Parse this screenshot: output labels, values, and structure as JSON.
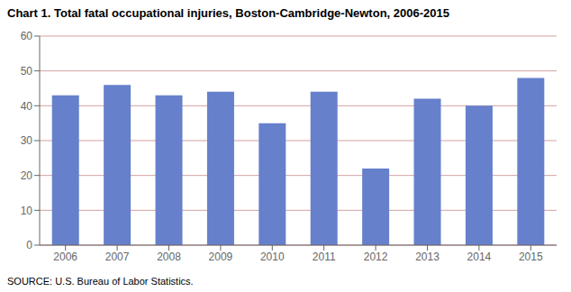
{
  "chart_data": {
    "type": "bar",
    "title": "Chart 1. Total fatal occupational injuries, Boston-Cambridge-Newton, 2006-2015",
    "annotations": [
      "SOURCE: U.S. Bureau of Labor Statistics."
    ],
    "categories": [
      "2006",
      "2007",
      "2008",
      "2009",
      "2010",
      "2011",
      "2012",
      "2013",
      "2014",
      "2015"
    ],
    "values": [
      43,
      46,
      43,
      44,
      35,
      44,
      22,
      42,
      40,
      48
    ],
    "color": "#6680cc",
    "ylim": [
      0,
      60
    ],
    "yticks": [
      0,
      10,
      20,
      30,
      40,
      50,
      60
    ],
    "grid": true
  }
}
